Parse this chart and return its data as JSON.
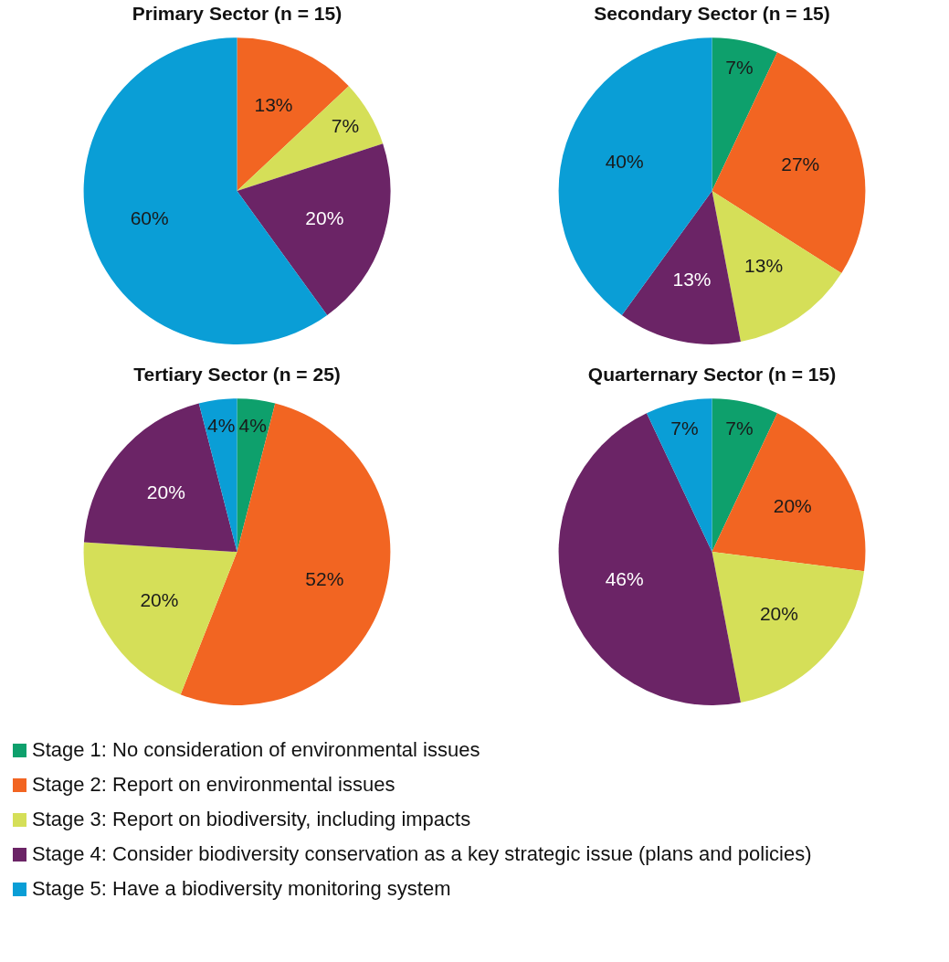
{
  "chart_data": [
    {
      "type": "pie",
      "title": "Primary Sector (n = 15)",
      "categories": [
        "Stage 1: No consideration of environmental issues",
        "Stage 2: Report on environmental issues",
        "Stage 3: Report on biodiversity, including impacts",
        "Stage 4: Consider biodiversity conservation as a key strategic issue (plans and policies)",
        "Stage 5: Have a biodiversity monitoring system"
      ],
      "values": [
        0,
        13,
        7,
        20,
        60
      ],
      "value_labels": [
        null,
        "13%",
        "7%",
        "20%",
        "60%"
      ],
      "colors": [
        "#0ea06c",
        "#f26522",
        "#d5df58",
        "#6b2466",
        "#0a9ed6"
      ],
      "legend": "bottom"
    },
    {
      "type": "pie",
      "title": "Secondary Sector (n = 15)",
      "categories": [
        null,
        null,
        null,
        null,
        null
      ],
      "values": [
        7,
        27,
        13,
        13,
        40
      ],
      "value_labels": [
        "7%",
        "27%",
        "13%",
        "13%",
        "40%"
      ],
      "colors": [
        "#0ea06c",
        "#f26522",
        "#d5df58",
        "#6b2466",
        "#0a9ed6"
      ]
    },
    {
      "type": "pie",
      "title": "Tertiary Sector (n = 25)",
      "categories": [
        null,
        null,
        null,
        null,
        null
      ],
      "values": [
        4,
        52,
        20,
        20,
        4
      ],
      "value_labels": [
        "4%",
        "52%",
        "20%",
        "20%",
        "4%"
      ],
      "colors": [
        "#0ea06c",
        "#f26522",
        "#d5df58",
        "#6b2466",
        "#0a9ed6"
      ]
    },
    {
      "type": "pie",
      "title": "Quarternary Sector (n = 15)",
      "categories": [
        null,
        null,
        null,
        null,
        null
      ],
      "values": [
        7,
        20,
        20,
        46,
        7
      ],
      "value_labels": [
        "7%",
        "20%",
        "20%",
        "46%",
        "7%"
      ],
      "colors": [
        "#0ea06c",
        "#f26522",
        "#d5df58",
        "#6b2466",
        "#0a9ed6"
      ]
    }
  ]
}
